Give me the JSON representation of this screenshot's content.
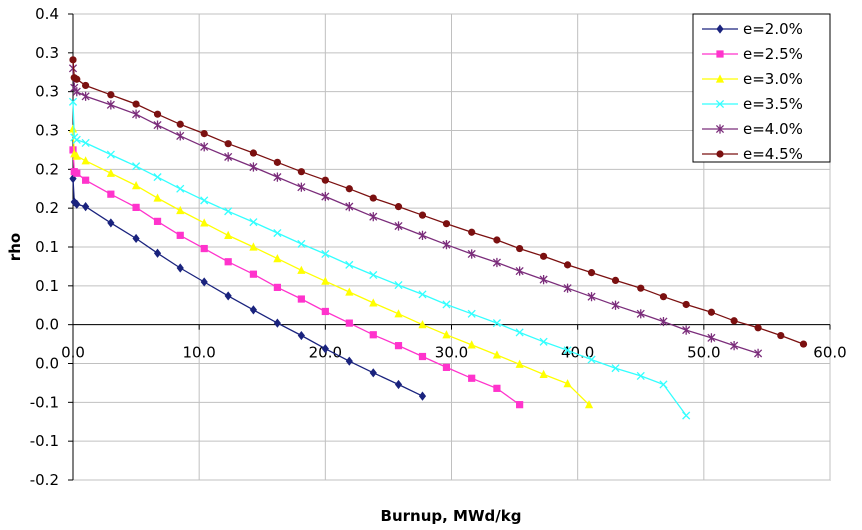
{
  "chart_data": {
    "type": "line",
    "title": "",
    "xlabel": "Burnup, MWd/kg",
    "ylabel": "rho",
    "xlim": [
      0,
      60
    ],
    "ylim": [
      -0.2,
      0.4
    ],
    "x_tick_values": [
      0,
      10,
      20,
      30,
      40,
      50,
      60
    ],
    "x_tick_labels": [
      "0.0",
      "10.0",
      "20.0",
      "30.0",
      "40.0",
      "50.0",
      "60.0"
    ],
    "y_tick_values": [
      -0.2,
      -0.15,
      -0.1,
      -0.05,
      0.0,
      0.05,
      0.1,
      0.15,
      0.2,
      0.25,
      0.3,
      0.35,
      0.4
    ],
    "y_tick_labels": [
      "-0.2",
      "-0.1",
      "-0.1",
      "0.0",
      "0.0",
      "0.1",
      "0.1",
      "0.2",
      "0.2",
      "0.3",
      "0.3",
      "0.3",
      "0.4"
    ],
    "grid": true,
    "legend_position": "top-right",
    "series": [
      {
        "name": "e=2.0%",
        "color": "#1a237e",
        "marker": "diamond",
        "x": [
          0,
          0.1,
          0.3,
          1,
          3,
          5,
          6.7,
          8.5,
          10.4,
          12.3,
          14.3,
          16.2,
          18.1,
          20,
          21.9,
          23.8,
          25.8,
          27.7
        ],
        "y": [
          0.188,
          0.158,
          0.155,
          0.152,
          0.131,
          0.111,
          0.092,
          0.073,
          0.055,
          0.037,
          0.019,
          0.002,
          -0.014,
          -0.031,
          -0.047,
          -0.062,
          -0.077,
          -0.092
        ]
      },
      {
        "name": "e=2.5%",
        "color": "#ff33cc",
        "marker": "square",
        "x": [
          0,
          0.1,
          0.3,
          1,
          3,
          5,
          6.7,
          8.5,
          10.4,
          12.3,
          14.3,
          16.2,
          18.1,
          20,
          21.9,
          23.8,
          25.8,
          27.7,
          29.6,
          31.6,
          33.6,
          35.4
        ],
        "y": [
          0.225,
          0.197,
          0.195,
          0.186,
          0.168,
          0.151,
          0.133,
          0.115,
          0.098,
          0.081,
          0.065,
          0.048,
          0.033,
          0.017,
          0.002,
          -0.013,
          -0.027,
          -0.041,
          -0.055,
          -0.069,
          -0.082,
          -0.103
        ]
      },
      {
        "name": "e=3.0%",
        "color": "#ffff00",
        "marker": "triangle",
        "x": [
          0,
          0.1,
          0.3,
          1,
          3,
          5,
          6.7,
          8.5,
          10.4,
          12.3,
          14.3,
          16.2,
          18.1,
          20,
          21.9,
          23.8,
          25.8,
          27.7,
          29.6,
          31.6,
          33.6,
          35.4,
          37.3,
          39.2,
          40.9
        ],
        "y": [
          0.252,
          0.22,
          0.217,
          0.211,
          0.195,
          0.179,
          0.163,
          0.147,
          0.131,
          0.115,
          0.1,
          0.085,
          0.07,
          0.056,
          0.042,
          0.028,
          0.014,
          0.0,
          -0.013,
          -0.026,
          -0.039,
          -0.051,
          -0.064,
          -0.076,
          -0.103
        ]
      },
      {
        "name": "e=3.5%",
        "color": "#33ffff",
        "marker": "x",
        "x": [
          0,
          0.1,
          0.3,
          1,
          3,
          5,
          6.7,
          8.5,
          10.4,
          12.3,
          14.3,
          16.2,
          18.1,
          20,
          21.9,
          23.8,
          25.8,
          27.7,
          29.6,
          31.6,
          33.6,
          35.4,
          37.3,
          39.2,
          41.1,
          43,
          45,
          46.8,
          48.6
        ],
        "y": [
          0.287,
          0.241,
          0.238,
          0.234,
          0.219,
          0.204,
          0.19,
          0.175,
          0.16,
          0.146,
          0.132,
          0.118,
          0.104,
          0.091,
          0.077,
          0.064,
          0.051,
          0.039,
          0.026,
          0.014,
          0.002,
          -0.01,
          -0.022,
          -0.033,
          -0.045,
          -0.056,
          -0.066,
          -0.077,
          -0.117
        ]
      },
      {
        "name": "e=4.0%",
        "color": "#7b2d7b",
        "marker": "star",
        "x": [
          0,
          0.1,
          0.3,
          1,
          3,
          5,
          6.7,
          8.5,
          10.4,
          12.3,
          14.3,
          16.2,
          18.1,
          20,
          21.9,
          23.8,
          25.8,
          27.7,
          29.6,
          31.6,
          33.6,
          35.4,
          37.3,
          39.2,
          41.1,
          43,
          45,
          46.8,
          48.6,
          50.6,
          52.4,
          54.3
        ],
        "y": [
          0.33,
          0.305,
          0.3,
          0.294,
          0.283,
          0.271,
          0.257,
          0.243,
          0.229,
          0.216,
          0.203,
          0.19,
          0.177,
          0.165,
          0.152,
          0.139,
          0.127,
          0.115,
          0.103,
          0.091,
          0.08,
          0.069,
          0.058,
          0.047,
          0.036,
          0.025,
          0.014,
          0.004,
          -0.007,
          -0.017,
          -0.027,
          -0.037
        ]
      },
      {
        "name": "e=4.5%",
        "color": "#7b1010",
        "marker": "circle",
        "x": [
          0,
          0.1,
          0.3,
          1,
          3,
          5,
          6.7,
          8.5,
          10.4,
          12.3,
          14.3,
          16.2,
          18.1,
          20,
          21.9,
          23.8,
          25.8,
          27.7,
          29.6,
          31.6,
          33.6,
          35.4,
          37.3,
          39.2,
          41.1,
          43,
          45,
          46.8,
          48.6,
          50.6,
          52.4,
          54.3,
          56.1,
          57.9
        ],
        "y": [
          0.341,
          0.318,
          0.316,
          0.308,
          0.296,
          0.284,
          0.271,
          0.258,
          0.246,
          0.233,
          0.221,
          0.209,
          0.197,
          0.186,
          0.175,
          0.163,
          0.152,
          0.141,
          0.13,
          0.119,
          0.109,
          0.098,
          0.088,
          0.077,
          0.067,
          0.057,
          0.047,
          0.036,
          0.026,
          0.016,
          0.005,
          -0.004,
          -0.014,
          -0.025
        ]
      }
    ]
  }
}
